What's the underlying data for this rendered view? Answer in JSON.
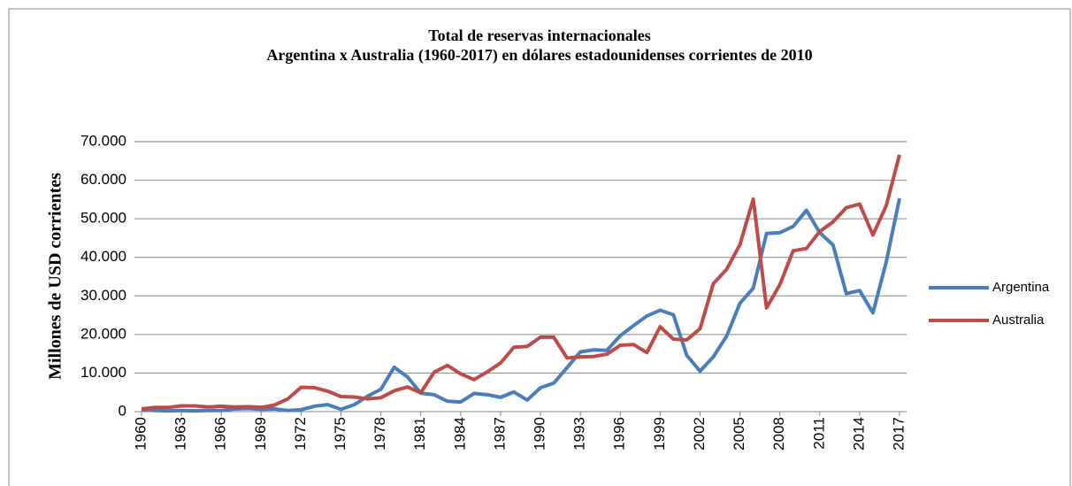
{
  "chart_data": {
    "type": "line",
    "title": "Total de reservas internacionales",
    "subtitle": "Argentina x Australia (1960-2017) en dólares estadounidenses corrientes de 2010",
    "y_label": "Millones de USD corrientes",
    "categories": [
      "1960",
      null,
      null,
      "1963",
      null,
      null,
      "1966",
      null,
      null,
      "1969",
      null,
      null,
      "1972",
      null,
      null,
      "1975",
      null,
      null,
      "1978",
      null,
      null,
      "1981",
      null,
      null,
      "1984",
      null,
      null,
      "1987",
      null,
      null,
      "1990",
      null,
      null,
      "1993",
      null,
      null,
      "1996",
      null,
      null,
      "1999",
      null,
      null,
      "2002",
      null,
      null,
      "2005",
      null,
      null,
      "2008",
      null,
      null,
      "2011",
      null,
      null,
      "2014",
      null,
      null,
      "2017"
    ],
    "series": [
      {
        "name": "Argentina",
        "color": "#4a7ebb",
        "values": [
          500,
          300,
          200,
          300,
          200,
          300,
          300,
          700,
          800,
          600,
          700,
          300,
          500,
          1400,
          1800,
          600,
          1800,
          4000,
          5800,
          11500,
          9000,
          4800,
          4400,
          2700,
          2500,
          4700,
          4400,
          3700,
          5100,
          3000,
          6200,
          7400,
          11400,
          15500,
          16000,
          15900,
          19700,
          22300,
          24800,
          26300,
          25100,
          14600,
          10500,
          14200,
          19600,
          28100,
          32000,
          46200,
          46400,
          48000,
          52200,
          46400,
          43200,
          30600,
          31400,
          25600,
          38800,
          55300
        ]
      },
      {
        "name": "Australia",
        "color": "#be4b48",
        "values": [
          700,
          1100,
          1100,
          1500,
          1500,
          1200,
          1400,
          1200,
          1300,
          1100,
          1700,
          3300,
          6300,
          6200,
          5300,
          3900,
          3800,
          3300,
          3600,
          5400,
          6400,
          4900,
          10200,
          12000,
          9800,
          8300,
          10300,
          12600,
          16700,
          16900,
          19300,
          19300,
          13900,
          14200,
          14300,
          14900,
          17200,
          17400,
          15300,
          22000,
          18800,
          18600,
          21500,
          33200,
          36900,
          43300,
          55100,
          26900,
          32900,
          41700,
          42300,
          46700,
          49200,
          52900,
          53800,
          45800,
          53400,
          66600
        ]
      }
    ],
    "ylim": [
      0,
      70000
    ],
    "yticks": [
      0,
      {
        "value": 10000,
        "label": "10.000"
      },
      {
        "value": 20000,
        "label": "20.000"
      },
      {
        "value": 30000,
        "label": "30.000"
      },
      {
        "value": 40000,
        "label": "40.000"
      },
      {
        "value": 50000,
        "label": "50.000"
      },
      {
        "value": 60000,
        "label": "60.000"
      },
      {
        "value": 70000,
        "label": "70.000"
      }
    ],
    "grid": true,
    "legend": "right"
  }
}
